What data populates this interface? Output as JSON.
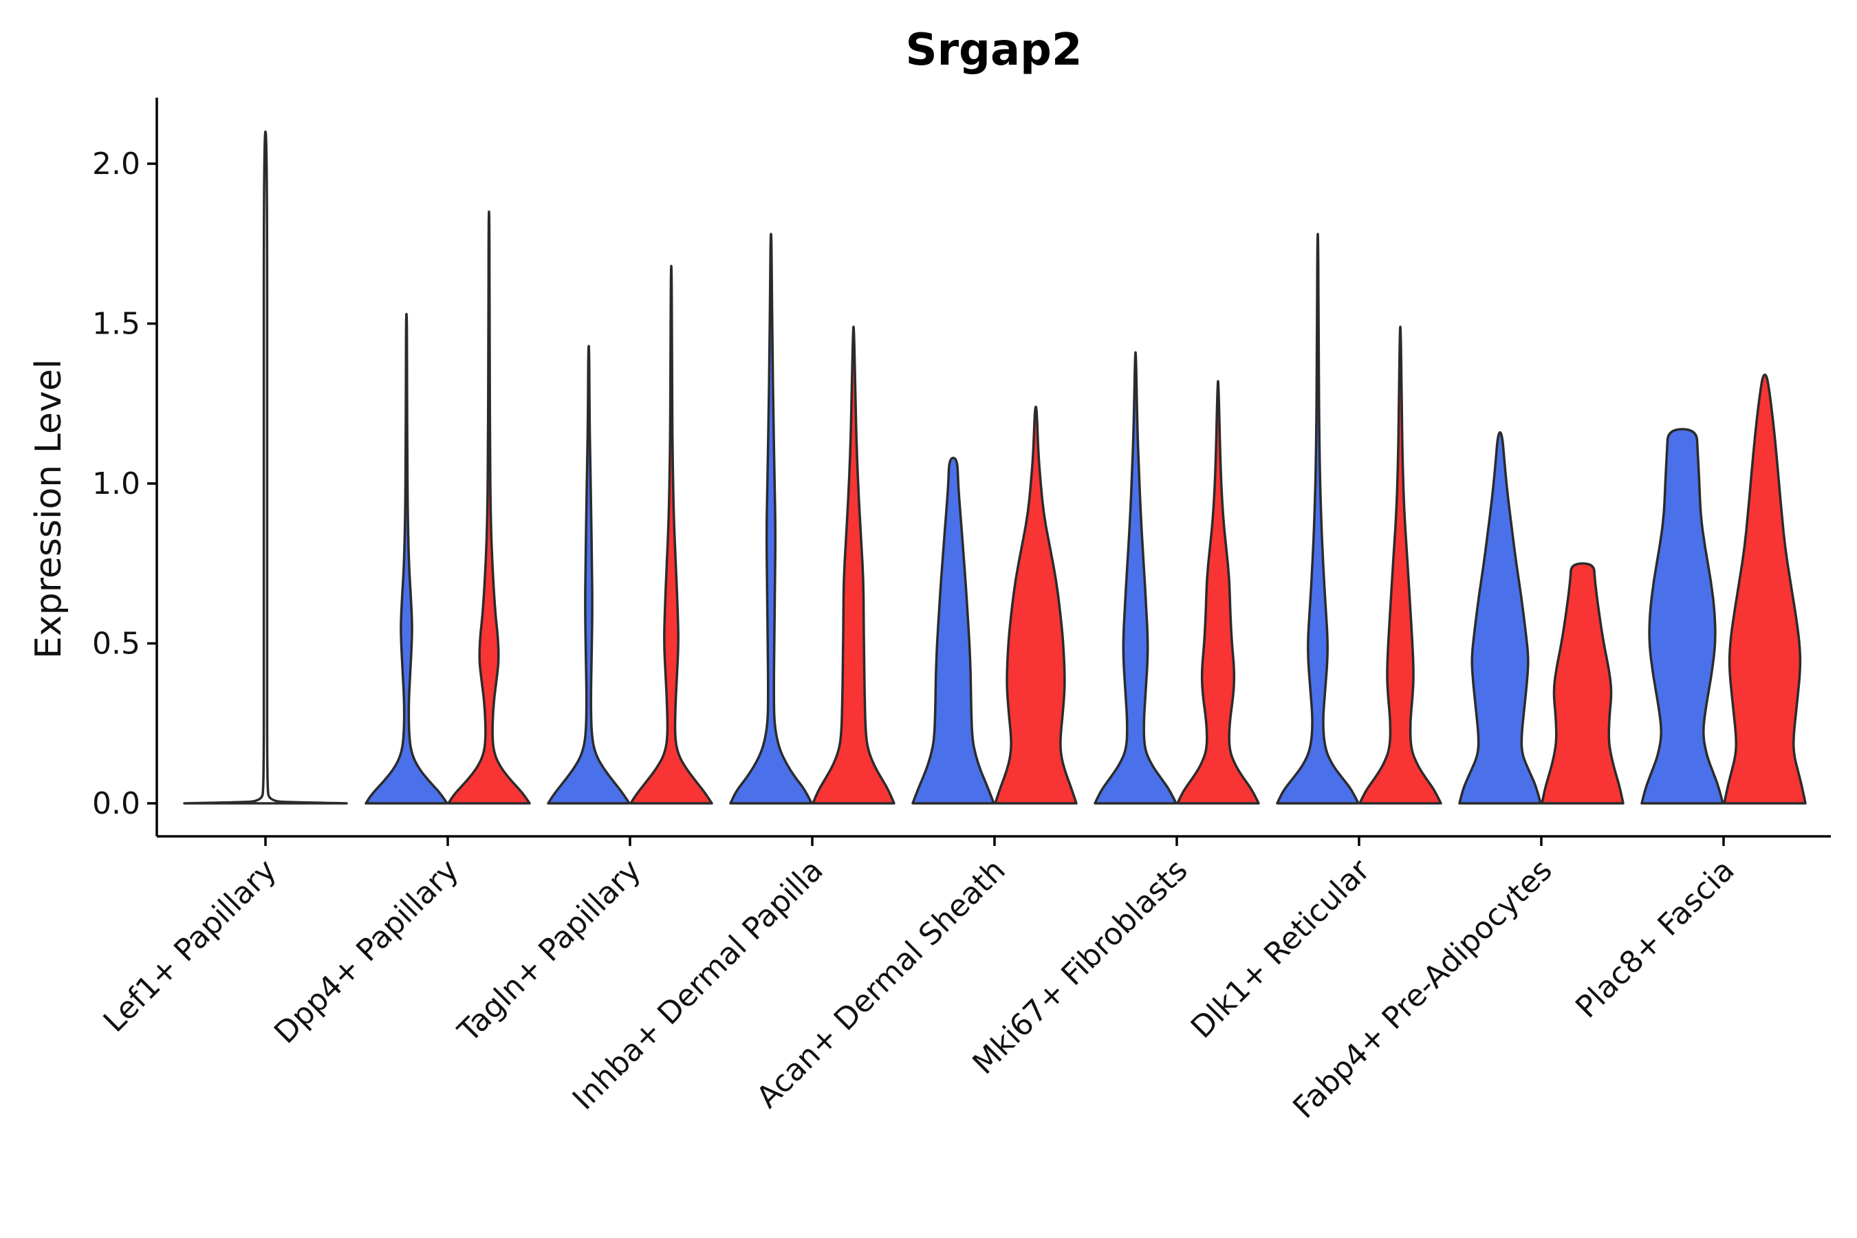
{
  "chart_data": {
    "type": "violin",
    "title": "Srgap2",
    "ylabel": "Expression Level",
    "xlabel": "",
    "ylim": [
      -0.1,
      2.2
    ],
    "yticks": [
      "0.0",
      "0.5",
      "1.0",
      "1.5",
      "2.0"
    ],
    "ytick_values": [
      0,
      0.5,
      1.0,
      1.5,
      2.0
    ],
    "categories": [
      "Lef1+ Papillary",
      "Dpp4+ Papillary",
      "Tagln+ Papillary",
      "Inhba+ Dermal Papilla",
      "Acan+ Dermal Sheath",
      "Mki67+ Fibroblasts",
      "Dlk1+ Reticular",
      "Fabp4+ Pre-Adipocytes",
      "Plac8+ Fascia"
    ],
    "colors": {
      "blue": "#4a71ea",
      "red": "#f83434",
      "line": "#2b2b2b"
    },
    "violins": [
      {
        "category": 0,
        "offset": 0,
        "color": "single",
        "max": 2.1,
        "profile": [
          [
            0,
            1.0
          ],
          [
            0.003,
            0.4
          ],
          [
            0.006,
            0.05
          ],
          [
            0.05,
            0.02
          ],
          [
            0.5,
            0.02
          ],
          [
            1.0,
            0.02
          ],
          [
            2.1,
            0.02
          ]
        ]
      },
      {
        "category": 1,
        "offset": -1,
        "color": "blue",
        "max": 1.53,
        "profile": [
          [
            0,
            1.0
          ],
          [
            0.03,
            0.85
          ],
          [
            0.07,
            0.55
          ],
          [
            0.11,
            0.3
          ],
          [
            0.15,
            0.14
          ],
          [
            0.2,
            0.07
          ],
          [
            0.3,
            0.05
          ],
          [
            0.4,
            0.09
          ],
          [
            0.5,
            0.13
          ],
          [
            0.56,
            0.14
          ],
          [
            0.64,
            0.11
          ],
          [
            0.75,
            0.06
          ],
          [
            0.9,
            0.03
          ],
          [
            1.1,
            0.02
          ],
          [
            1.3,
            0.015
          ],
          [
            1.53,
            0.01
          ]
        ]
      },
      {
        "category": 1,
        "offset": 1,
        "color": "red",
        "max": 1.85,
        "profile": [
          [
            0,
            1.0
          ],
          [
            0.03,
            0.85
          ],
          [
            0.07,
            0.55
          ],
          [
            0.11,
            0.3
          ],
          [
            0.15,
            0.14
          ],
          [
            0.2,
            0.08
          ],
          [
            0.3,
            0.1
          ],
          [
            0.4,
            0.2
          ],
          [
            0.45,
            0.24
          ],
          [
            0.52,
            0.22
          ],
          [
            0.6,
            0.15
          ],
          [
            0.75,
            0.08
          ],
          [
            0.9,
            0.04
          ],
          [
            1.1,
            0.025
          ],
          [
            1.4,
            0.015
          ],
          [
            1.85,
            0.01
          ]
        ]
      },
      {
        "category": 2,
        "offset": -1,
        "color": "blue",
        "max": 1.43,
        "profile": [
          [
            0,
            1.0
          ],
          [
            0.03,
            0.85
          ],
          [
            0.07,
            0.6
          ],
          [
            0.11,
            0.36
          ],
          [
            0.15,
            0.18
          ],
          [
            0.2,
            0.08
          ],
          [
            0.3,
            0.05
          ],
          [
            0.45,
            0.07
          ],
          [
            0.6,
            0.09
          ],
          [
            0.75,
            0.08
          ],
          [
            0.9,
            0.06
          ],
          [
            1.05,
            0.04
          ],
          [
            1.2,
            0.02
          ],
          [
            1.43,
            0.01
          ]
        ]
      },
      {
        "category": 2,
        "offset": 1,
        "color": "red",
        "max": 1.68,
        "profile": [
          [
            0,
            1.0
          ],
          [
            0.03,
            0.85
          ],
          [
            0.07,
            0.6
          ],
          [
            0.11,
            0.36
          ],
          [
            0.15,
            0.18
          ],
          [
            0.2,
            0.09
          ],
          [
            0.3,
            0.1
          ],
          [
            0.4,
            0.14
          ],
          [
            0.5,
            0.18
          ],
          [
            0.6,
            0.16
          ],
          [
            0.75,
            0.11
          ],
          [
            0.9,
            0.06
          ],
          [
            1.1,
            0.03
          ],
          [
            1.3,
            0.02
          ],
          [
            1.68,
            0.01
          ]
        ]
      },
      {
        "category": 3,
        "offset": -1,
        "color": "blue",
        "max": 1.78,
        "profile": [
          [
            0,
            1.0
          ],
          [
            0.04,
            0.85
          ],
          [
            0.08,
            0.6
          ],
          [
            0.13,
            0.35
          ],
          [
            0.18,
            0.18
          ],
          [
            0.25,
            0.08
          ],
          [
            0.35,
            0.07
          ],
          [
            0.5,
            0.08
          ],
          [
            0.7,
            0.1
          ],
          [
            0.85,
            0.11
          ],
          [
            1.0,
            0.09
          ],
          [
            1.2,
            0.06
          ],
          [
            1.4,
            0.04
          ],
          [
            1.6,
            0.02
          ],
          [
            1.78,
            0.01
          ]
        ]
      },
      {
        "category": 3,
        "offset": 1,
        "color": "red",
        "max": 1.49,
        "profile": [
          [
            0,
            1.0
          ],
          [
            0.04,
            0.87
          ],
          [
            0.08,
            0.68
          ],
          [
            0.12,
            0.5
          ],
          [
            0.17,
            0.35
          ],
          [
            0.22,
            0.3
          ],
          [
            0.3,
            0.28
          ],
          [
            0.45,
            0.26
          ],
          [
            0.6,
            0.25
          ],
          [
            0.7,
            0.24
          ],
          [
            0.8,
            0.2
          ],
          [
            0.95,
            0.13
          ],
          [
            1.1,
            0.08
          ],
          [
            1.25,
            0.05
          ],
          [
            1.49,
            0.01
          ]
        ]
      },
      {
        "category": 4,
        "offset": -1,
        "color": "blue",
        "max": 1.08,
        "profile": [
          [
            0,
            1.0
          ],
          [
            0.05,
            0.85
          ],
          [
            0.1,
            0.68
          ],
          [
            0.15,
            0.55
          ],
          [
            0.2,
            0.47
          ],
          [
            0.3,
            0.44
          ],
          [
            0.4,
            0.43
          ],
          [
            0.5,
            0.4
          ],
          [
            0.6,
            0.35
          ],
          [
            0.7,
            0.3
          ],
          [
            0.8,
            0.24
          ],
          [
            0.9,
            0.18
          ],
          [
            1.0,
            0.12
          ],
          [
            1.08,
            0.1
          ]
        ]
      },
      {
        "category": 4,
        "offset": 1,
        "color": "red",
        "max": 1.24,
        "profile": [
          [
            0,
            1.0
          ],
          [
            0.05,
            0.87
          ],
          [
            0.1,
            0.72
          ],
          [
            0.15,
            0.62
          ],
          [
            0.2,
            0.6
          ],
          [
            0.3,
            0.68
          ],
          [
            0.38,
            0.72
          ],
          [
            0.5,
            0.68
          ],
          [
            0.6,
            0.6
          ],
          [
            0.7,
            0.5
          ],
          [
            0.8,
            0.35
          ],
          [
            0.9,
            0.2
          ],
          [
            1.0,
            0.12
          ],
          [
            1.1,
            0.06
          ],
          [
            1.24,
            0.02
          ]
        ]
      },
      {
        "category": 5,
        "offset": -1,
        "color": "blue",
        "max": 1.41,
        "profile": [
          [
            0,
            1.0
          ],
          [
            0.04,
            0.85
          ],
          [
            0.08,
            0.62
          ],
          [
            0.12,
            0.4
          ],
          [
            0.17,
            0.22
          ],
          [
            0.25,
            0.2
          ],
          [
            0.35,
            0.25
          ],
          [
            0.45,
            0.3
          ],
          [
            0.52,
            0.3
          ],
          [
            0.6,
            0.27
          ],
          [
            0.75,
            0.2
          ],
          [
            0.9,
            0.13
          ],
          [
            1.05,
            0.08
          ],
          [
            1.2,
            0.04
          ],
          [
            1.41,
            0.01
          ]
        ]
      },
      {
        "category": 5,
        "offset": 1,
        "color": "red",
        "max": 1.32,
        "profile": [
          [
            0,
            1.0
          ],
          [
            0.04,
            0.85
          ],
          [
            0.08,
            0.62
          ],
          [
            0.12,
            0.42
          ],
          [
            0.17,
            0.27
          ],
          [
            0.25,
            0.28
          ],
          [
            0.35,
            0.39
          ],
          [
            0.42,
            0.4
          ],
          [
            0.5,
            0.34
          ],
          [
            0.6,
            0.3
          ],
          [
            0.7,
            0.28
          ],
          [
            0.8,
            0.2
          ],
          [
            0.9,
            0.12
          ],
          [
            1.05,
            0.06
          ],
          [
            1.32,
            0.01
          ]
        ]
      },
      {
        "category": 6,
        "offset": -1,
        "color": "blue",
        "max": 1.78,
        "profile": [
          [
            0,
            1.0
          ],
          [
            0.04,
            0.85
          ],
          [
            0.08,
            0.6
          ],
          [
            0.12,
            0.36
          ],
          [
            0.17,
            0.18
          ],
          [
            0.25,
            0.12
          ],
          [
            0.35,
            0.18
          ],
          [
            0.45,
            0.24
          ],
          [
            0.52,
            0.24
          ],
          [
            0.6,
            0.2
          ],
          [
            0.75,
            0.13
          ],
          [
            0.9,
            0.08
          ],
          [
            1.1,
            0.04
          ],
          [
            1.4,
            0.02
          ],
          [
            1.78,
            0.01
          ]
        ]
      },
      {
        "category": 6,
        "offset": 1,
        "color": "red",
        "max": 1.49,
        "profile": [
          [
            0,
            1.0
          ],
          [
            0.04,
            0.85
          ],
          [
            0.08,
            0.62
          ],
          [
            0.12,
            0.42
          ],
          [
            0.17,
            0.26
          ],
          [
            0.25,
            0.24
          ],
          [
            0.33,
            0.3
          ],
          [
            0.4,
            0.33
          ],
          [
            0.5,
            0.3
          ],
          [
            0.6,
            0.25
          ],
          [
            0.75,
            0.18
          ],
          [
            0.9,
            0.1
          ],
          [
            1.05,
            0.06
          ],
          [
            1.2,
            0.04
          ],
          [
            1.49,
            0.01
          ]
        ]
      },
      {
        "category": 7,
        "offset": -1,
        "color": "blue",
        "max": 1.16,
        "profile": [
          [
            0,
            1.0
          ],
          [
            0.05,
            0.9
          ],
          [
            0.1,
            0.72
          ],
          [
            0.15,
            0.55
          ],
          [
            0.2,
            0.52
          ],
          [
            0.3,
            0.6
          ],
          [
            0.4,
            0.68
          ],
          [
            0.46,
            0.7
          ],
          [
            0.55,
            0.62
          ],
          [
            0.65,
            0.52
          ],
          [
            0.75,
            0.4
          ],
          [
            0.85,
            0.3
          ],
          [
            0.95,
            0.2
          ],
          [
            1.05,
            0.12
          ],
          [
            1.16,
            0.05
          ]
        ]
      },
      {
        "category": 7,
        "offset": 1,
        "color": "red",
        "max": 0.75,
        "profile": [
          [
            0,
            1.0
          ],
          [
            0.05,
            0.92
          ],
          [
            0.1,
            0.8
          ],
          [
            0.15,
            0.7
          ],
          [
            0.2,
            0.64
          ],
          [
            0.27,
            0.66
          ],
          [
            0.35,
            0.72
          ],
          [
            0.42,
            0.65
          ],
          [
            0.5,
            0.52
          ],
          [
            0.6,
            0.4
          ],
          [
            0.7,
            0.3
          ],
          [
            0.75,
            0.28
          ]
        ]
      },
      {
        "category": 8,
        "offset": -1,
        "color": "blue",
        "max": 1.17,
        "profile": [
          [
            0,
            1.0
          ],
          [
            0.05,
            0.9
          ],
          [
            0.1,
            0.75
          ],
          [
            0.15,
            0.6
          ],
          [
            0.22,
            0.5
          ],
          [
            0.3,
            0.58
          ],
          [
            0.4,
            0.72
          ],
          [
            0.5,
            0.82
          ],
          [
            0.6,
            0.8
          ],
          [
            0.7,
            0.7
          ],
          [
            0.8,
            0.56
          ],
          [
            0.9,
            0.45
          ],
          [
            1.0,
            0.42
          ],
          [
            1.1,
            0.38
          ],
          [
            1.17,
            0.35
          ]
        ]
      },
      {
        "category": 8,
        "offset": 1,
        "color": "red",
        "max": 1.34,
        "profile": [
          [
            0,
            1.0
          ],
          [
            0.05,
            0.92
          ],
          [
            0.1,
            0.82
          ],
          [
            0.15,
            0.72
          ],
          [
            0.2,
            0.7
          ],
          [
            0.3,
            0.78
          ],
          [
            0.42,
            0.88
          ],
          [
            0.5,
            0.86
          ],
          [
            0.6,
            0.75
          ],
          [
            0.7,
            0.62
          ],
          [
            0.8,
            0.5
          ],
          [
            0.9,
            0.42
          ],
          [
            1.0,
            0.35
          ],
          [
            1.1,
            0.28
          ],
          [
            1.2,
            0.2
          ],
          [
            1.3,
            0.1
          ],
          [
            1.34,
            0.04
          ]
        ]
      }
    ]
  }
}
